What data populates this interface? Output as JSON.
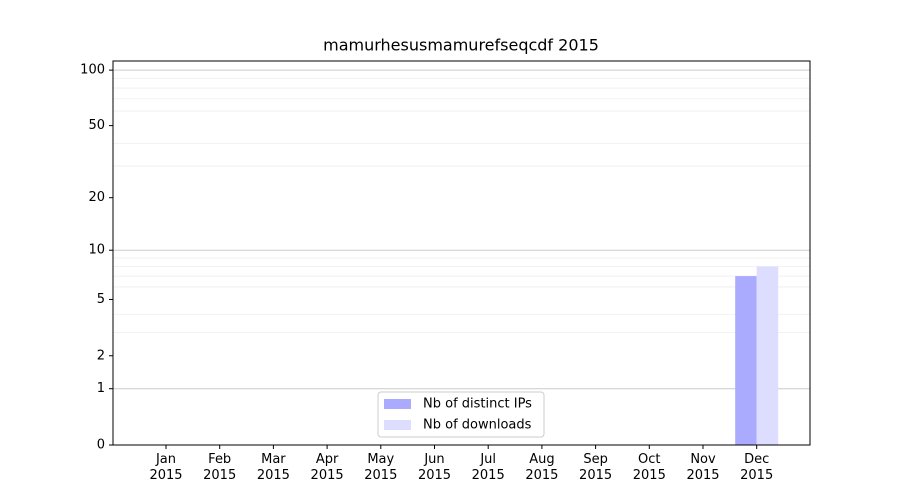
{
  "chart_data": {
    "type": "bar",
    "title": "mamurhesusmamurefseqcdf 2015",
    "categories": [
      "Jan 2015",
      "Feb 2015",
      "Mar 2015",
      "Apr 2015",
      "May 2015",
      "Jun 2015",
      "Jul 2015",
      "Aug 2015",
      "Sep 2015",
      "Oct 2015",
      "Nov 2015",
      "Dec 2015"
    ],
    "series": [
      {
        "name": "Nb of distinct IPs",
        "color": "#aaaaff",
        "values": [
          0,
          0,
          0,
          0,
          0,
          0,
          0,
          0,
          0,
          0,
          0,
          7
        ]
      },
      {
        "name": "Nb of downloads",
        "color": "#ddddff",
        "values": [
          0,
          0,
          0,
          0,
          0,
          0,
          0,
          0,
          0,
          0,
          0,
          8
        ]
      }
    ],
    "yscale": "log1p",
    "ylim": [
      0,
      112
    ],
    "yticks": [
      0,
      1,
      2,
      5,
      10,
      20,
      50,
      100
    ],
    "major_gridlines": [
      1,
      10,
      100
    ],
    "minor_gridlines": [
      3,
      4,
      6,
      7,
      8,
      9,
      30,
      40,
      60,
      70,
      80,
      90
    ],
    "grid": true,
    "legend": "lower center"
  }
}
